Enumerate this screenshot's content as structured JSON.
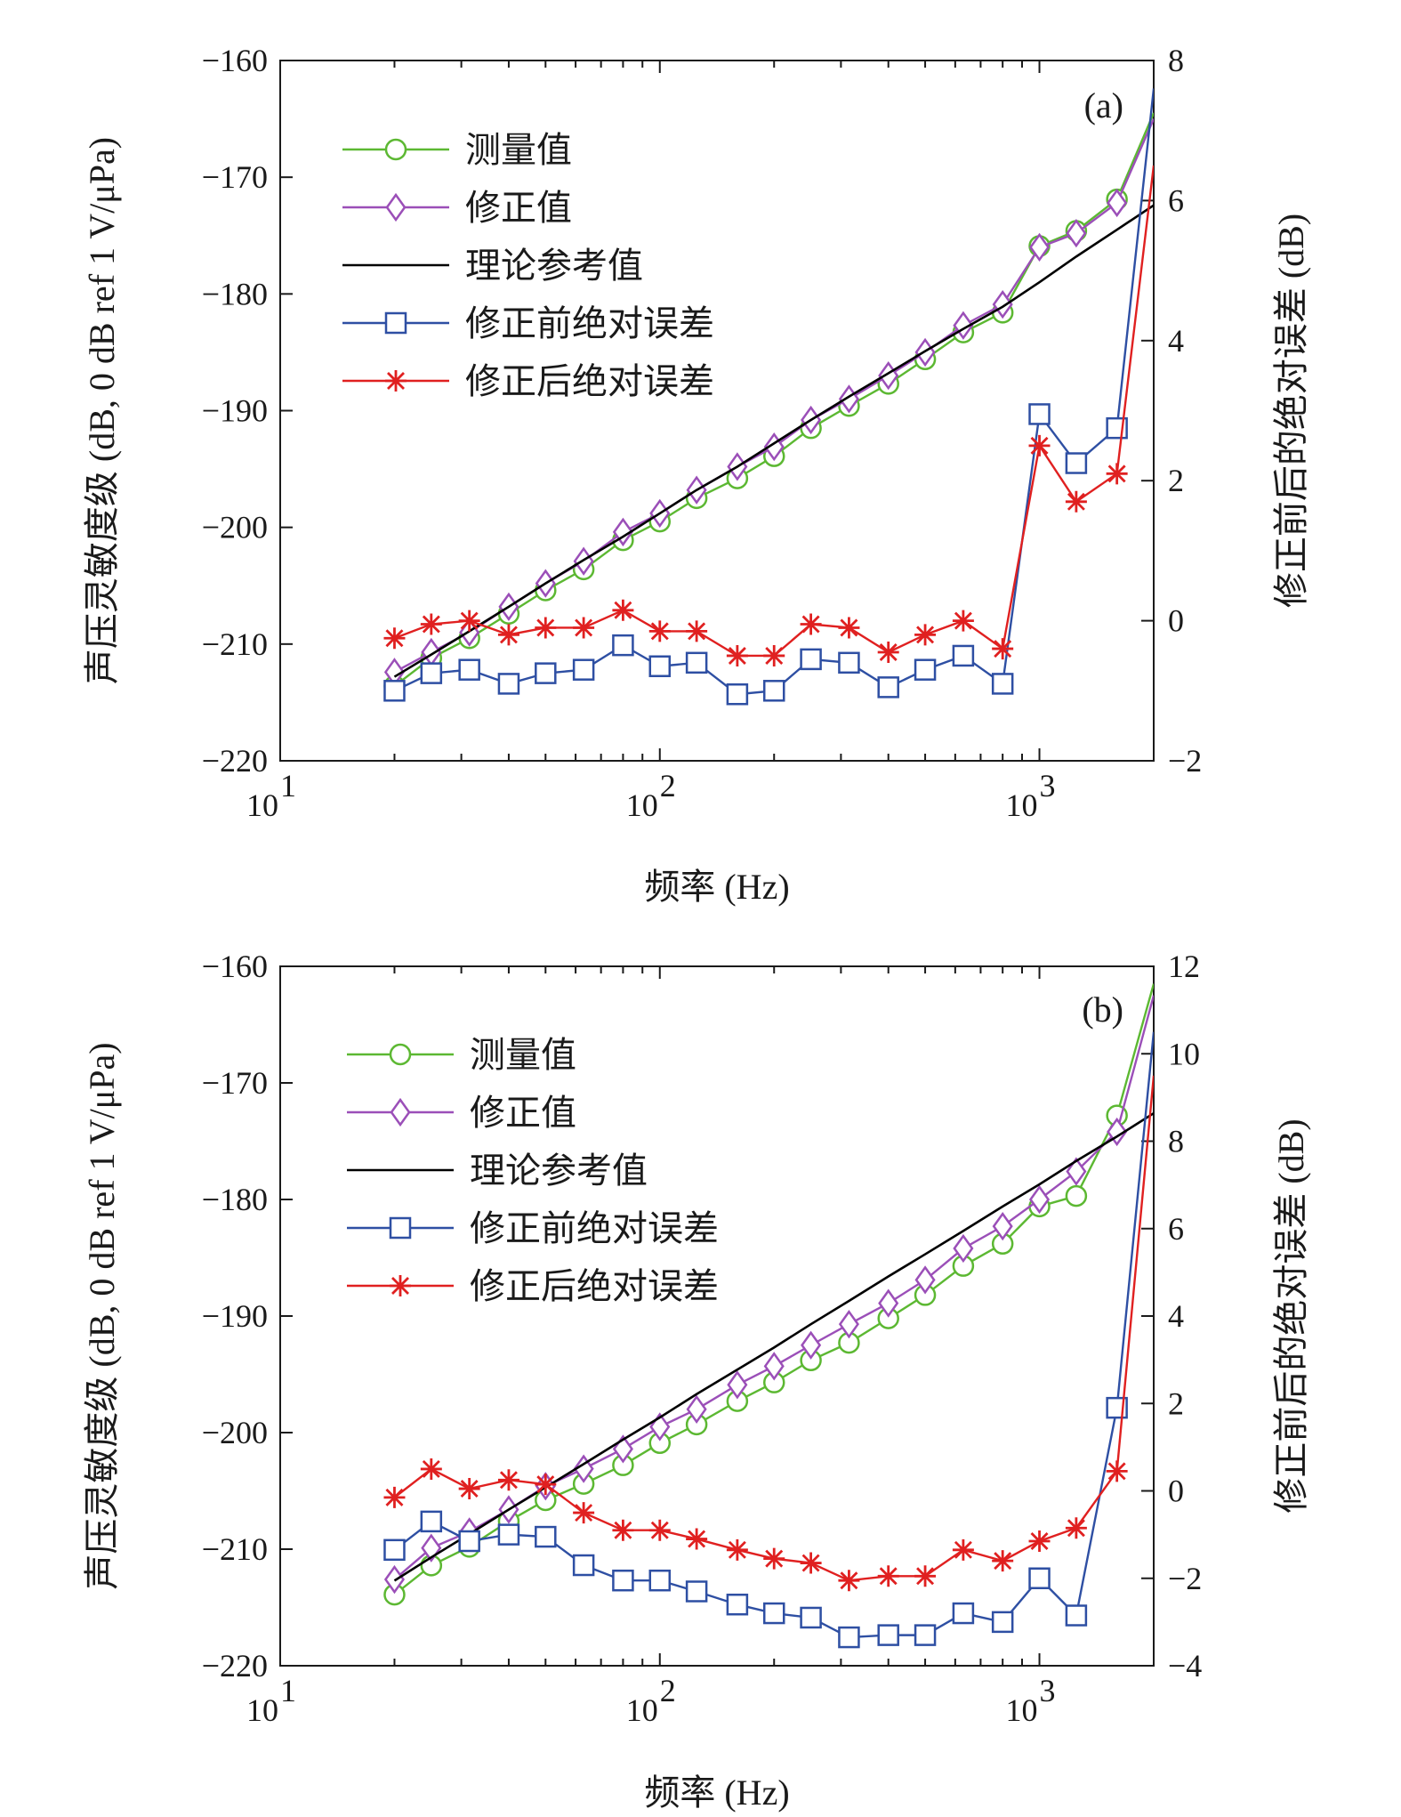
{
  "chart_data": [
    {
      "type": "line",
      "panel_label": "(a)",
      "xlabel": "频率 (Hz)",
      "ylabel_left": "声压灵敏度级 (dB, 0 dB ref 1 V/μPa)",
      "ylabel_right": "修正前后的绝对误差 (dB)",
      "x_scale": "log",
      "xlim": [
        10,
        2000
      ],
      "x_ticks": [
        {
          "value": 10,
          "base": "10",
          "exp": "1"
        },
        {
          "value": 100,
          "base": "10",
          "exp": "2"
        },
        {
          "value": 1000,
          "base": "10",
          "exp": "3"
        }
      ],
      "ylim_left": [
        -220,
        -160
      ],
      "y_ticks_left": [
        {
          "value": -160,
          "label": "−160"
        },
        {
          "value": -170,
          "label": "−170"
        },
        {
          "value": -180,
          "label": "−180"
        },
        {
          "value": -190,
          "label": "−190"
        },
        {
          "value": -200,
          "label": "−200"
        },
        {
          "value": -210,
          "label": "−210"
        },
        {
          "value": -220,
          "label": "−220"
        }
      ],
      "ylim_right": [
        -2,
        8
      ],
      "y_ticks_right": [
        {
          "value": -2,
          "label": "−2"
        },
        {
          "value": 0,
          "label": "0"
        },
        {
          "value": 2,
          "label": "2"
        },
        {
          "value": 4,
          "label": "4"
        },
        {
          "value": 6,
          "label": "6"
        },
        {
          "value": 8,
          "label": "8"
        }
      ],
      "legend_position": "top-left",
      "x": [
        20,
        25,
        31.5,
        40,
        50,
        63,
        80,
        100,
        125,
        160,
        200,
        250,
        315,
        400,
        500,
        630,
        800,
        1000,
        1250,
        1600,
        2000
      ],
      "series": [
        {
          "name": "测量值",
          "axis": "left",
          "color": "#5cb832",
          "marker": "circle",
          "values": [
            -213.6,
            -211.2,
            -209.5,
            -207.4,
            -205.4,
            -203.6,
            -201.1,
            -199.5,
            -197.5,
            -195.8,
            -193.9,
            -191.5,
            -189.6,
            -187.7,
            -185.6,
            -183.3,
            -181.6,
            -175.9,
            -174.6,
            -171.9,
            -164.5
          ]
        },
        {
          "name": "修正值",
          "axis": "left",
          "color": "#9b4fb8",
          "marker": "diamond",
          "values": [
            -212.4,
            -210.7,
            -209.0,
            -206.8,
            -204.8,
            -202.9,
            -200.4,
            -198.8,
            -196.8,
            -194.8,
            -193.1,
            -190.8,
            -189.0,
            -187.0,
            -185.0,
            -182.7,
            -180.9,
            -176.0,
            -174.8,
            -172.2,
            -165.0
          ]
        },
        {
          "name": "理论参考值",
          "axis": "left",
          "color": "#000000",
          "marker": "none",
          "values": [
            -212.8,
            -210.9,
            -208.9,
            -206.8,
            -204.8,
            -202.8,
            -200.8,
            -198.8,
            -196.8,
            -194.8,
            -192.8,
            -190.8,
            -188.8,
            -186.8,
            -184.9,
            -183.0,
            -181.1,
            -179.0,
            -176.8,
            -174.5,
            -172.4
          ]
        },
        {
          "name": "修正前绝对误差",
          "axis": "right",
          "color": "#2e4fa3",
          "marker": "square",
          "values": [
            -1.0,
            -0.75,
            -0.7,
            -0.9,
            -0.75,
            -0.7,
            -0.35,
            -0.65,
            -0.6,
            -1.05,
            -1.0,
            -0.55,
            -0.6,
            -0.95,
            -0.7,
            -0.5,
            -0.9,
            2.95,
            2.25,
            2.75,
            7.6
          ]
        },
        {
          "name": "修正后绝对误差",
          "axis": "right",
          "color": "#e02020",
          "marker": "asterisk",
          "values": [
            -0.25,
            -0.05,
            0.0,
            -0.2,
            -0.1,
            -0.1,
            0.15,
            -0.15,
            -0.15,
            -0.5,
            -0.5,
            -0.05,
            -0.1,
            -0.45,
            -0.2,
            0.0,
            -0.4,
            2.5,
            1.7,
            2.1,
            6.5
          ]
        }
      ]
    },
    {
      "type": "line",
      "panel_label": "(b)",
      "xlabel": "频率 (Hz)",
      "ylabel_left": "声压灵敏度级 (dB, 0 dB ref 1 V/μPa)",
      "ylabel_right": "修正前后的绝对误差 (dB)",
      "x_scale": "log",
      "xlim": [
        10,
        2000
      ],
      "x_ticks": [
        {
          "value": 10,
          "base": "10",
          "exp": "1"
        },
        {
          "value": 100,
          "base": "10",
          "exp": "2"
        },
        {
          "value": 1000,
          "base": "10",
          "exp": "3"
        }
      ],
      "ylim_left": [
        -220,
        -160
      ],
      "y_ticks_left": [
        {
          "value": -160,
          "label": "−160"
        },
        {
          "value": -170,
          "label": "−170"
        },
        {
          "value": -180,
          "label": "−180"
        },
        {
          "value": -190,
          "label": "−190"
        },
        {
          "value": -200,
          "label": "−200"
        },
        {
          "value": -210,
          "label": "−210"
        },
        {
          "value": -220,
          "label": "−220"
        }
      ],
      "ylim_right": [
        -4,
        12
      ],
      "y_ticks_right": [
        {
          "value": -4,
          "label": "−4"
        },
        {
          "value": -2,
          "label": "−2"
        },
        {
          "value": 0,
          "label": "0"
        },
        {
          "value": 2,
          "label": "2"
        },
        {
          "value": 4,
          "label": "4"
        },
        {
          "value": 6,
          "label": "6"
        },
        {
          "value": 8,
          "label": "8"
        },
        {
          "value": 10,
          "label": "10"
        },
        {
          "value": 12,
          "label": "12"
        }
      ],
      "legend_position": "top-left",
      "x": [
        20,
        25,
        31.5,
        40,
        50,
        63,
        80,
        100,
        125,
        160,
        200,
        250,
        315,
        400,
        500,
        630,
        800,
        1000,
        1250,
        1600,
        2000
      ],
      "series": [
        {
          "name": "测量值",
          "axis": "left",
          "color": "#5cb832",
          "marker": "circle",
          "values": [
            -213.9,
            -211.4,
            -209.8,
            -207.6,
            -205.8,
            -204.4,
            -202.8,
            -200.9,
            -199.3,
            -197.3,
            -195.7,
            -193.8,
            -192.3,
            -190.2,
            -188.2,
            -185.7,
            -183.8,
            -180.6,
            -179.7,
            -172.8,
            -161.5
          ]
        },
        {
          "name": "修正值",
          "axis": "left",
          "color": "#9b4fb8",
          "marker": "diamond",
          "values": [
            -212.6,
            -209.9,
            -208.5,
            -206.6,
            -204.6,
            -203.1,
            -201.4,
            -199.5,
            -198.0,
            -195.9,
            -194.3,
            -192.5,
            -190.7,
            -188.9,
            -186.9,
            -184.2,
            -182.3,
            -180.0,
            -177.6,
            -174.2,
            -162.5
          ]
        },
        {
          "name": "理论参考值",
          "axis": "left",
          "color": "#000000",
          "marker": "none",
          "values": [
            -212.7,
            -210.7,
            -208.7,
            -206.6,
            -204.7,
            -202.7,
            -200.6,
            -198.7,
            -196.7,
            -194.6,
            -192.7,
            -190.7,
            -188.7,
            -186.6,
            -184.7,
            -182.7,
            -180.6,
            -178.7,
            -176.7,
            -174.6,
            -172.6
          ]
        },
        {
          "name": "修正前绝对误差",
          "axis": "right",
          "color": "#2e4fa3",
          "marker": "square",
          "values": [
            -1.35,
            -0.7,
            -1.15,
            -1.0,
            -1.05,
            -1.7,
            -2.05,
            -2.05,
            -2.3,
            -2.6,
            -2.8,
            -2.9,
            -3.35,
            -3.3,
            -3.3,
            -2.8,
            -3.0,
            -2.0,
            -2.85,
            1.9,
            10.5
          ]
        },
        {
          "name": "修正后绝对误差",
          "axis": "right",
          "color": "#e02020",
          "marker": "asterisk",
          "values": [
            -0.15,
            0.5,
            0.05,
            0.25,
            0.15,
            -0.5,
            -0.9,
            -0.9,
            -1.1,
            -1.35,
            -1.55,
            -1.65,
            -2.05,
            -1.95,
            -1.95,
            -1.35,
            -1.6,
            -1.15,
            -0.85,
            0.45,
            9.5
          ]
        }
      ]
    }
  ]
}
